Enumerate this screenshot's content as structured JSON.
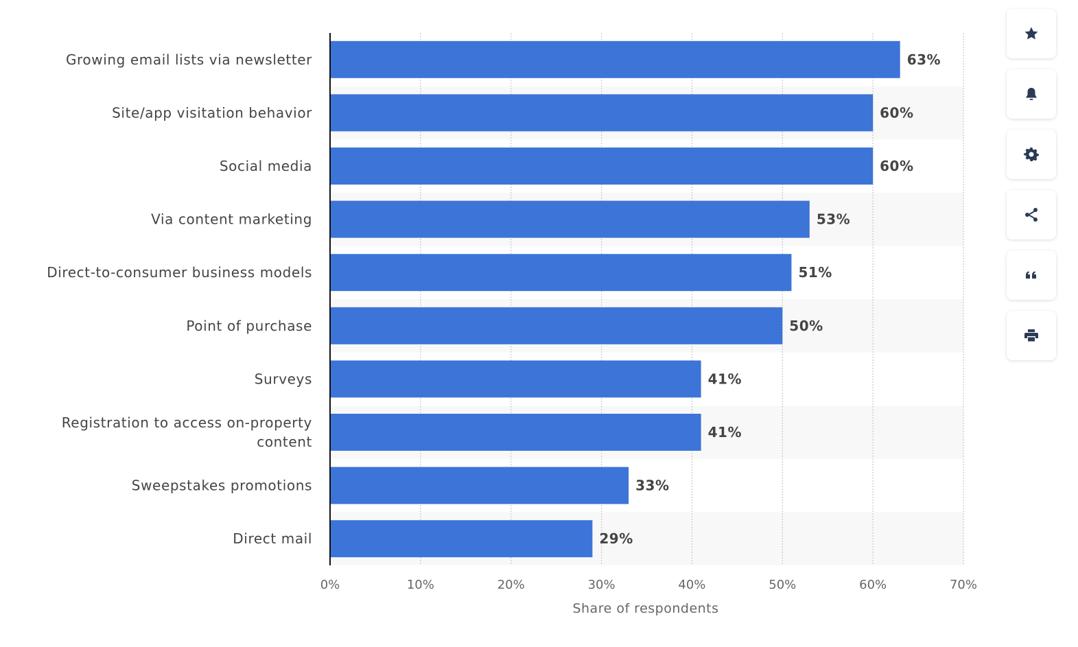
{
  "chart_data": {
    "type": "bar",
    "orientation": "horizontal",
    "categories": [
      "Growing email lists via newsletter",
      "Site/app visitation behavior",
      "Social media",
      "Via content marketing",
      "Direct-to-consumer business models",
      "Point of purchase",
      "Surveys",
      "Registration to access on-property content",
      "Sweepstakes promotions",
      "Direct mail"
    ],
    "category_lines": [
      [
        "Growing email lists via newsletter"
      ],
      [
        "Site/app visitation behavior"
      ],
      [
        "Social media"
      ],
      [
        "Via content marketing"
      ],
      [
        "Direct-to-consumer business models"
      ],
      [
        "Point of purchase"
      ],
      [
        "Surveys"
      ],
      [
        "Registration to access on-property",
        "content"
      ],
      [
        "Sweepstakes promotions"
      ],
      [
        "Direct mail"
      ]
    ],
    "values": [
      63,
      60,
      60,
      53,
      51,
      50,
      41,
      41,
      33,
      29
    ],
    "value_labels": [
      "63%",
      "60%",
      "60%",
      "53%",
      "51%",
      "50%",
      "41%",
      "41%",
      "33%",
      "29%"
    ],
    "xticks": [
      0,
      10,
      20,
      30,
      40,
      50,
      60,
      70
    ],
    "xtick_labels": [
      "0%",
      "10%",
      "20%",
      "30%",
      "40%",
      "50%",
      "60%",
      "70%"
    ],
    "xlim": [
      0,
      70
    ],
    "xlabel": "Share of respondents",
    "ylabel": "",
    "title": "",
    "grid": true,
    "bar_color": "#3d74d8",
    "label_color": "#444444",
    "band_color": "#f8f8f8",
    "grid_color": "#c8c8c8"
  },
  "toolbar": {
    "buttons": [
      {
        "name": "favorite-button",
        "icon": "star-icon"
      },
      {
        "name": "notification-button",
        "icon": "bell-icon"
      },
      {
        "name": "settings-button",
        "icon": "gear-icon"
      },
      {
        "name": "share-button",
        "icon": "share-icon"
      },
      {
        "name": "cite-button",
        "icon": "quote-icon"
      },
      {
        "name": "print-button",
        "icon": "printer-icon"
      }
    ]
  }
}
